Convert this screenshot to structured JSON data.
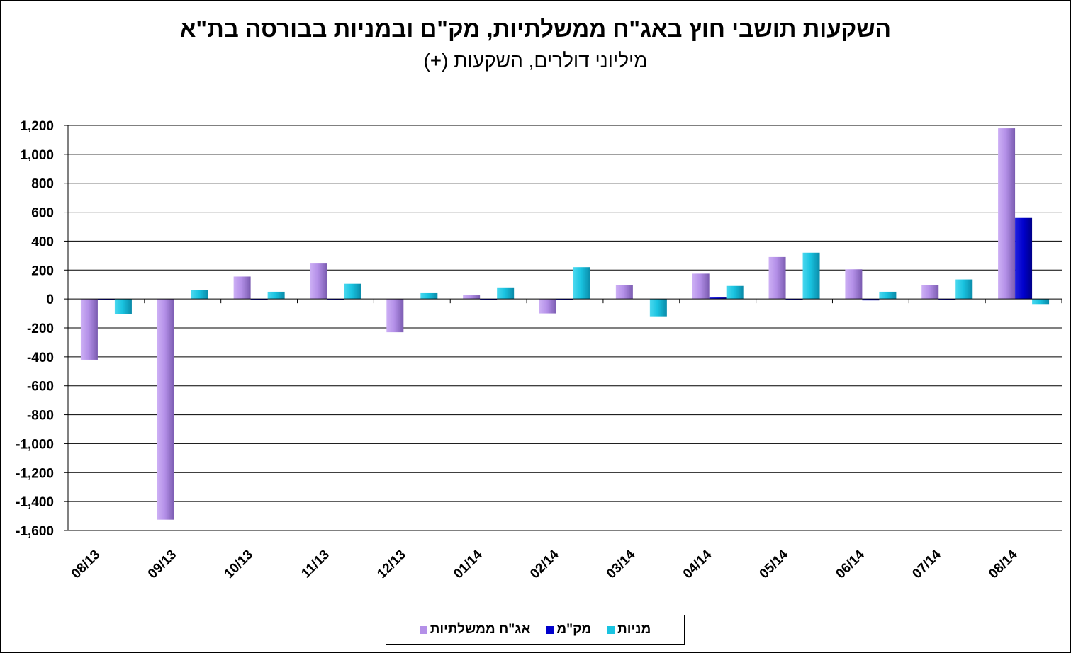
{
  "chart_data": {
    "type": "bar",
    "title": "השקעות תושבי חוץ באג\"ח ממשלתיות, מק\"ם ובמניות בבורסה בת\"א",
    "subtitle": "מיליוני דולרים, השקעות (+)",
    "ylim": [
      -1600,
      1200
    ],
    "yticks": [
      1200,
      1000,
      800,
      600,
      400,
      200,
      0,
      -200,
      -400,
      -600,
      -800,
      -1000,
      -1200,
      -1400,
      -1600
    ],
    "ytick_labels": [
      "1,200",
      "1,000",
      "800",
      "600",
      "400",
      "200",
      "0",
      "-200",
      "-400",
      "-600",
      "-800",
      "-1,000",
      "-1,200",
      "-1,400",
      "-1,600"
    ],
    "grid": true,
    "legend_position": "bottom",
    "categories": [
      "08/13",
      "09/13",
      "10/13",
      "11/13",
      "12/13",
      "01/14",
      "02/14",
      "03/14",
      "04/14",
      "05/14",
      "06/14",
      "07/14",
      "08/14"
    ],
    "series": [
      {
        "name": "אג\"ח ממשלתיות",
        "color": "#b490e8",
        "values": [
          -420,
          -1525,
          155,
          245,
          -230,
          25,
          -100,
          95,
          175,
          290,
          205,
          95,
          1180
        ]
      },
      {
        "name": "מק\"מ",
        "color": "#0000cc",
        "values": [
          -3,
          0,
          -5,
          -5,
          0,
          -5,
          -3,
          0,
          10,
          -3,
          -10,
          -3,
          560
        ]
      },
      {
        "name": "מניות",
        "color": "#19c3e0",
        "values": [
          -105,
          60,
          50,
          105,
          45,
          80,
          220,
          -120,
          90,
          320,
          50,
          135,
          -35
        ]
      }
    ]
  }
}
